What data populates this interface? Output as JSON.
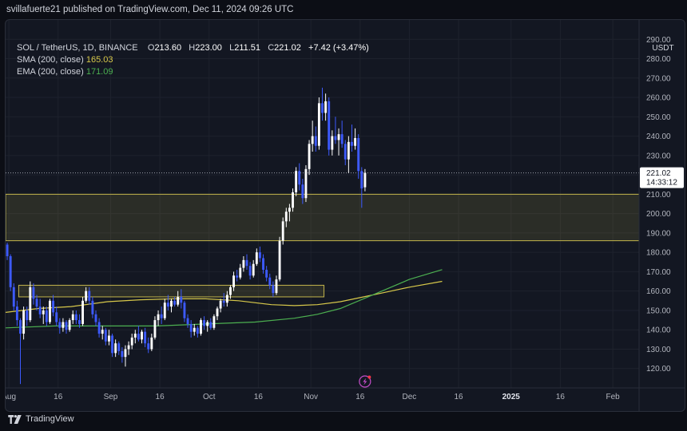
{
  "header": {
    "published": "svillafuerte21 published on TradingView.com, Dec 11, 2024 09:26 UTC"
  },
  "legend": {
    "symbol": "SOL / TetherUS, 1D, BINANCE",
    "ohlc": {
      "open_label": "O",
      "open": "213.60",
      "high_label": "H",
      "high": "223.00",
      "low_label": "L",
      "low": "211.51",
      "close_label": "C",
      "close": "221.02",
      "change": "+7.42 (+3.47%)"
    },
    "sma": {
      "label": "SMA (200, close)",
      "value": "165.03",
      "color": "#d7c84a"
    },
    "ema": {
      "label": "EMA (200, close)",
      "value": "171.09",
      "color": "#4caf50"
    }
  },
  "price_scale": {
    "currency": "USDT",
    "last_price": "221.02",
    "countdown": "14:33:12"
  },
  "footer": {
    "brand": "TradingView"
  },
  "colors": {
    "up": "#ffffff",
    "down": "#3d5afe",
    "zone": "#d4c451",
    "background": "#131722",
    "grid": "#1e222d"
  },
  "chart_data": {
    "type": "candlestick",
    "title": "SOL / TetherUS, 1D, BINANCE",
    "ylim": [
      110,
      300
    ],
    "y_ticks": [
      120,
      130,
      140,
      150,
      160,
      170,
      180,
      190,
      200,
      210,
      220,
      230,
      240,
      250,
      260,
      270,
      280,
      290
    ],
    "x_ticks": [
      "Aug",
      "16",
      "Sep",
      "16",
      "Oct",
      "16",
      "Nov",
      "16",
      "Dec",
      "16",
      "2025",
      "16",
      "Feb"
    ],
    "x_tick_dates": [
      "2024-08-01",
      "2024-08-16",
      "2024-09-01",
      "2024-09-16",
      "2024-10-01",
      "2024-10-16",
      "2024-11-01",
      "2024-11-16",
      "2024-12-01",
      "2024-12-16",
      "2025-01-01",
      "2025-01-16",
      "2025-02-01"
    ],
    "x_range": [
      "2024-07-31",
      "2025-02-09"
    ],
    "grid": true,
    "series": [
      {
        "name": "SOL / TetherUS",
        "kind": "ohlc",
        "start_date": "2024-07-31",
        "candles": [
          [
            184.0,
            185.0,
            176.0,
            178.0
          ],
          [
            178.0,
            179.0,
            160.0,
            162.0
          ],
          [
            162.0,
            164.0,
            150.0,
            152.0
          ],
          [
            152.0,
            155.0,
            142.0,
            145.0
          ],
          [
            145.0,
            146.0,
            112.0,
            138.0
          ],
          [
            138.0,
            152.0,
            135.0,
            150.0
          ],
          [
            150.0,
            152.0,
            142.0,
            145.0
          ],
          [
            145.0,
            165.0,
            144.0,
            162.0
          ],
          [
            162.0,
            164.0,
            153.0,
            156.0
          ],
          [
            156.0,
            158.0,
            150.0,
            152.0
          ],
          [
            152.0,
            156.0,
            146.0,
            148.0
          ],
          [
            148.0,
            152.0,
            143.0,
            150.0
          ],
          [
            150.0,
            152.0,
            142.0,
            144.0
          ],
          [
            144.0,
            156.0,
            143.0,
            155.0
          ],
          [
            155.0,
            158.0,
            147.0,
            149.0
          ],
          [
            149.0,
            152.0,
            142.0,
            144.0
          ],
          [
            144.0,
            146.0,
            138.0,
            141.0
          ],
          [
            141.0,
            146.0,
            139.0,
            144.0
          ],
          [
            144.0,
            145.0,
            138.0,
            140.0
          ],
          [
            140.0,
            146.0,
            139.0,
            145.0
          ],
          [
            145.0,
            150.0,
            143.0,
            148.0
          ],
          [
            148.0,
            150.0,
            143.0,
            145.0
          ],
          [
            145.0,
            148.0,
            141.0,
            143.0
          ],
          [
            143.0,
            157.0,
            142.0,
            155.0
          ],
          [
            155.0,
            162.0,
            154.0,
            160.0
          ],
          [
            160.0,
            162.0,
            153.0,
            155.0
          ],
          [
            155.0,
            157.0,
            146.0,
            148.0
          ],
          [
            148.0,
            150.0,
            142.0,
            144.0
          ],
          [
            144.0,
            146.0,
            136.0,
            138.0
          ],
          [
            138.0,
            142.0,
            135.0,
            140.0
          ],
          [
            140.0,
            141.0,
            132.0,
            134.0
          ],
          [
            134.0,
            140.0,
            132.0,
            137.0
          ],
          [
            137.0,
            138.0,
            126.0,
            128.0
          ],
          [
            128.0,
            135.0,
            126.0,
            133.0
          ],
          [
            133.0,
            134.0,
            127.0,
            129.0
          ],
          [
            129.0,
            131.0,
            123.0,
            126.0
          ],
          [
            126.0,
            132.0,
            121.0,
            130.0
          ],
          [
            130.0,
            134.0,
            127.0,
            132.0
          ],
          [
            132.0,
            138.0,
            130.0,
            136.0
          ],
          [
            136.0,
            140.0,
            133.0,
            138.0
          ],
          [
            138.0,
            142.0,
            134.0,
            135.0
          ],
          [
            135.0,
            140.0,
            133.0,
            139.0
          ],
          [
            139.0,
            141.0,
            131.0,
            133.0
          ],
          [
            133.0,
            136.0,
            128.0,
            130.0
          ],
          [
            130.0,
            138.0,
            129.0,
            136.0
          ],
          [
            136.0,
            147.0,
            135.0,
            145.0
          ],
          [
            145.0,
            150.0,
            142.0,
            148.0
          ],
          [
            148.0,
            152.0,
            143.0,
            146.0
          ],
          [
            146.0,
            156.0,
            145.0,
            154.0
          ],
          [
            154.0,
            158.0,
            150.0,
            152.0
          ],
          [
            152.0,
            156.0,
            149.0,
            155.0
          ],
          [
            155.0,
            157.0,
            152.0,
            153.0
          ],
          [
            153.0,
            160.0,
            152.0,
            157.0
          ],
          [
            157.0,
            161.0,
            151.0,
            154.0
          ],
          [
            154.0,
            155.0,
            144.0,
            146.0
          ],
          [
            146.0,
            148.0,
            141.0,
            143.0
          ],
          [
            143.0,
            145.0,
            136.0,
            139.0
          ],
          [
            139.0,
            143.0,
            137.0,
            141.0
          ],
          [
            141.0,
            142.0,
            136.0,
            138.0
          ],
          [
            138.0,
            146.0,
            137.0,
            145.0
          ],
          [
            145.0,
            147.0,
            140.0,
            142.0
          ],
          [
            142.0,
            145.0,
            139.0,
            144.0
          ],
          [
            144.0,
            146.0,
            140.0,
            141.0
          ],
          [
            141.0,
            148.0,
            140.0,
            147.0
          ],
          [
            147.0,
            152.0,
            145.0,
            151.0
          ],
          [
            151.0,
            156.0,
            149.0,
            155.0
          ],
          [
            155.0,
            159.0,
            152.0,
            154.0
          ],
          [
            154.0,
            160.0,
            152.0,
            158.0
          ],
          [
            158.0,
            163.0,
            156.0,
            162.0
          ],
          [
            162.0,
            170.0,
            160.0,
            168.0
          ],
          [
            168.0,
            171.0,
            165.0,
            167.0
          ],
          [
            167.0,
            174.0,
            166.0,
            172.0
          ],
          [
            172.0,
            178.0,
            170.0,
            176.0
          ],
          [
            176.0,
            179.0,
            171.0,
            173.0
          ],
          [
            173.0,
            175.0,
            166.0,
            168.0
          ],
          [
            168.0,
            176.0,
            167.0,
            174.0
          ],
          [
            174.0,
            182.0,
            173.0,
            180.0
          ],
          [
            180.0,
            183.0,
            175.0,
            177.0
          ],
          [
            177.0,
            179.0,
            169.0,
            171.0
          ],
          [
            171.0,
            173.0,
            165.0,
            167.0
          ],
          [
            167.0,
            169.0,
            161.0,
            163.0
          ],
          [
            163.0,
            165.0,
            157.0,
            159.0
          ],
          [
            159.0,
            168.0,
            158.0,
            166.0
          ],
          [
            166.0,
            188.0,
            165.0,
            186.0
          ],
          [
            186.0,
            198.0,
            184.0,
            196.0
          ],
          [
            196.0,
            203.0,
            193.0,
            201.0
          ],
          [
            201.0,
            205.0,
            196.0,
            203.0
          ],
          [
            203.0,
            213.0,
            201.0,
            211.0
          ],
          [
            211.0,
            224.0,
            209.0,
            222.0
          ],
          [
            222.0,
            226.0,
            212.0,
            215.0
          ],
          [
            215.0,
            218.0,
            205.0,
            208.0
          ],
          [
            208.0,
            225.0,
            206.0,
            223.0
          ],
          [
            223.0,
            238.0,
            220.0,
            236.0
          ],
          [
            236.0,
            248.0,
            232.0,
            240.0
          ],
          [
            240.0,
            245.0,
            232.0,
            235.0
          ],
          [
            235.0,
            260.0,
            233.0,
            257.0
          ],
          [
            257.0,
            265.0,
            248.0,
            252.0
          ],
          [
            252.0,
            262.0,
            248.0,
            258.0
          ],
          [
            258.0,
            260.0,
            230.0,
            233.0
          ],
          [
            233.0,
            243.0,
            230.0,
            240.0
          ],
          [
            240.0,
            250.0,
            236.0,
            238.0
          ],
          [
            238.0,
            244.0,
            230.0,
            241.0
          ],
          [
            241.0,
            248.0,
            234.0,
            236.0
          ],
          [
            236.0,
            238.0,
            225.0,
            228.0
          ],
          [
            228.0,
            240.0,
            221.0,
            237.0
          ],
          [
            237.0,
            246.0,
            232.0,
            235.0
          ],
          [
            235.0,
            244.0,
            233.0,
            239.0
          ],
          [
            239.0,
            241.0,
            218.0,
            222.0
          ],
          [
            222.0,
            224.0,
            203.0,
            213.0
          ],
          [
            213.6,
            223.0,
            211.51,
            221.02
          ]
        ]
      },
      {
        "name": "SMA (200, close)",
        "kind": "line",
        "points": [
          [
            "2024-07-31",
            149
          ],
          [
            "2024-08-10",
            151
          ],
          [
            "2024-08-20",
            152
          ],
          [
            "2024-08-31",
            154.5
          ],
          [
            "2024-09-10",
            155.5
          ],
          [
            "2024-09-20",
            156
          ],
          [
            "2024-09-30",
            156
          ],
          [
            "2024-10-10",
            155
          ],
          [
            "2024-10-20",
            153
          ],
          [
            "2024-10-27",
            152.5
          ],
          [
            "2024-11-03",
            153
          ],
          [
            "2024-11-10",
            154.5
          ],
          [
            "2024-11-17",
            157
          ],
          [
            "2024-11-24",
            159.5
          ],
          [
            "2024-12-01",
            162
          ],
          [
            "2024-12-11",
            165.03
          ]
        ]
      },
      {
        "name": "EMA (200, close)",
        "kind": "line",
        "points": [
          [
            "2024-07-31",
            141
          ],
          [
            "2024-08-15",
            142
          ],
          [
            "2024-08-31",
            142
          ],
          [
            "2024-09-15",
            142
          ],
          [
            "2024-09-30",
            143
          ],
          [
            "2024-10-15",
            144
          ],
          [
            "2024-10-27",
            146
          ],
          [
            "2024-11-03",
            148
          ],
          [
            "2024-11-10",
            151
          ],
          [
            "2024-11-17",
            156
          ],
          [
            "2024-11-24",
            161
          ],
          [
            "2024-12-01",
            166
          ],
          [
            "2024-12-11",
            171.09
          ]
        ]
      }
    ],
    "zones": [
      {
        "from": "2024-07-31",
        "to": "2025-02-09",
        "low": 186,
        "high": 210
      },
      {
        "from": "2024-08-04",
        "to": "2024-11-05",
        "low": 157,
        "high": 163
      }
    ],
    "h_levels": [
      {
        "value": 221.02,
        "style": "dotted"
      }
    ]
  }
}
